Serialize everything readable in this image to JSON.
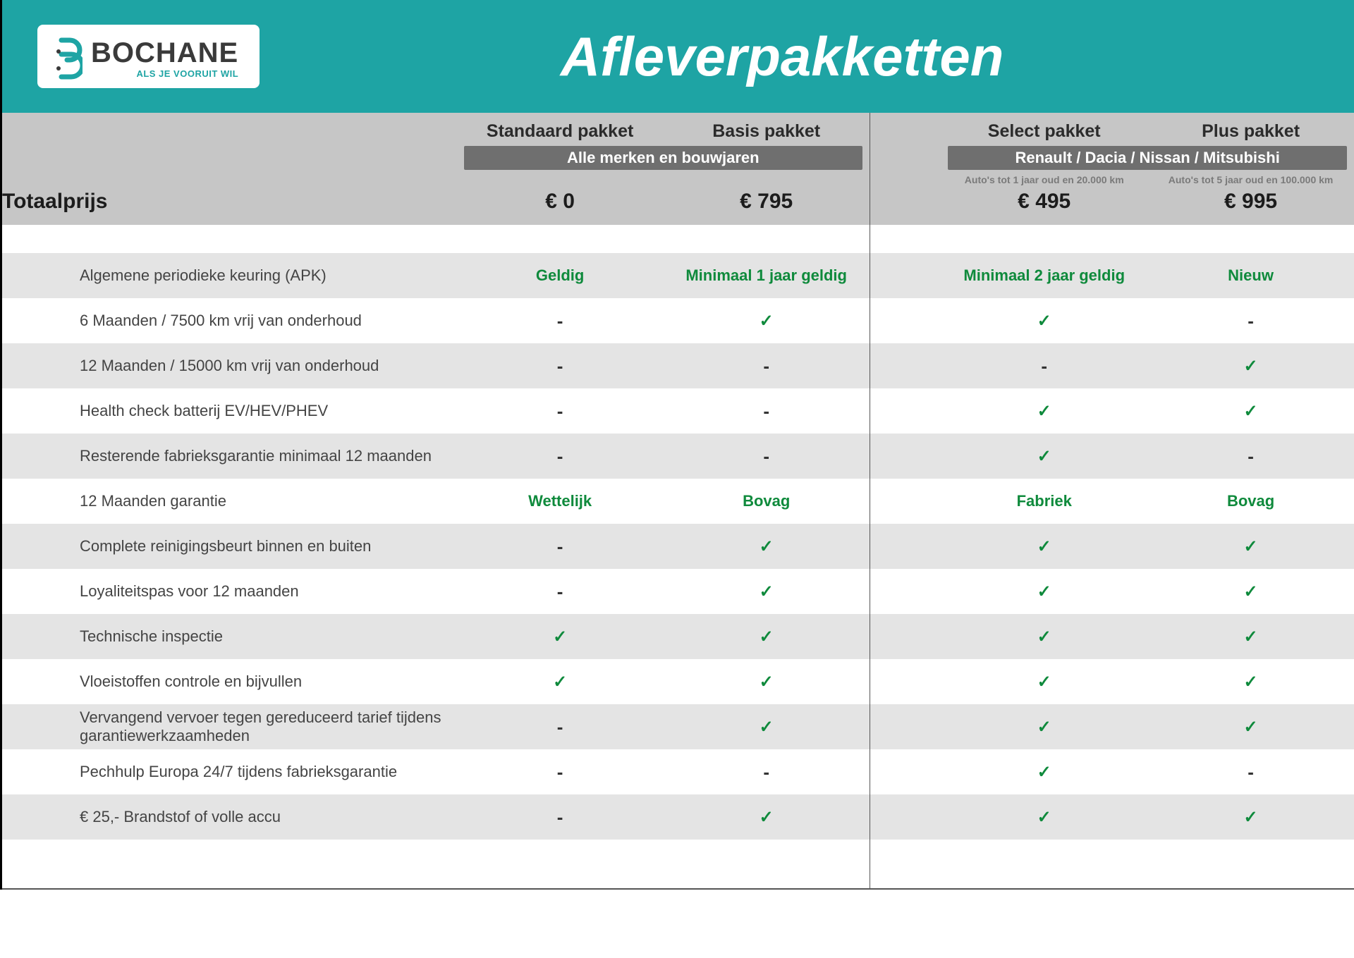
{
  "brand": {
    "name": "BOCHANE",
    "tagline": "ALS JE VOORUIT WIL",
    "logo_color": "#1ea4a4",
    "text_color": "#3a3a3a"
  },
  "title": "Afleverpakketten",
  "header_bg": "#1ea4a4",
  "header_area_bg": "#c6c6c6",
  "band_bg": "#6f6f6f",
  "alt_row_bg": "#e4e4e4",
  "green": "#0f8a3c",
  "groups": [
    {
      "band": "Alle merken en bouwjaren",
      "pkgs": [
        "standaard",
        "basis"
      ]
    },
    {
      "band": "Renault / Dacia / Nissan / Mitsubishi",
      "pkgs": [
        "select",
        "plus"
      ]
    }
  ],
  "packages": {
    "standaard": {
      "name": "Standaard pakket",
      "note": "",
      "price": "€ 0"
    },
    "basis": {
      "name": "Basis pakket",
      "note": "",
      "price": "€ 795"
    },
    "select": {
      "name": "Select pakket",
      "note": "Auto's tot 1 jaar oud en 20.000 km",
      "price": "€ 495"
    },
    "plus": {
      "name": "Plus pakket",
      "note": "Auto's tot 5 jaar oud en 100.000 km",
      "price": "€ 995"
    }
  },
  "totaal_label": "Totaalprijs",
  "rows": [
    {
      "label": "Algemene periodieke keuring (APK)",
      "alt": true,
      "cells": {
        "standaard": {
          "t": "text",
          "v": "Geldig"
        },
        "basis": {
          "t": "text",
          "v": "Minimaal 1 jaar geldig"
        },
        "select": {
          "t": "text",
          "v": "Minimaal 2 jaar geldig"
        },
        "plus": {
          "t": "text",
          "v": "Nieuw"
        }
      }
    },
    {
      "label": "6 Maanden / 7500 km vrij van onderhoud",
      "alt": false,
      "cells": {
        "standaard": {
          "t": "dash"
        },
        "basis": {
          "t": "check"
        },
        "select": {
          "t": "check"
        },
        "plus": {
          "t": "dash"
        }
      }
    },
    {
      "label": "12 Maanden / 15000 km vrij van onderhoud",
      "alt": true,
      "cells": {
        "standaard": {
          "t": "dash"
        },
        "basis": {
          "t": "dash"
        },
        "select": {
          "t": "dash"
        },
        "plus": {
          "t": "check"
        }
      }
    },
    {
      "label": "Health check batterij EV/HEV/PHEV",
      "alt": false,
      "cells": {
        "standaard": {
          "t": "dash"
        },
        "basis": {
          "t": "dash"
        },
        "select": {
          "t": "check"
        },
        "plus": {
          "t": "check"
        }
      }
    },
    {
      "label": "Resterende fabrieksgarantie minimaal 12 maanden",
      "alt": true,
      "cells": {
        "standaard": {
          "t": "dash"
        },
        "basis": {
          "t": "dash"
        },
        "select": {
          "t": "check"
        },
        "plus": {
          "t": "dash"
        }
      }
    },
    {
      "label": "12 Maanden  garantie",
      "alt": false,
      "cells": {
        "standaard": {
          "t": "text",
          "v": "Wettelijk"
        },
        "basis": {
          "t": "text",
          "v": "Bovag"
        },
        "select": {
          "t": "text",
          "v": "Fabriek"
        },
        "plus": {
          "t": "text",
          "v": "Bovag"
        }
      }
    },
    {
      "label": "Complete reinigingsbeurt binnen en buiten",
      "alt": true,
      "cells": {
        "standaard": {
          "t": "dash"
        },
        "basis": {
          "t": "check"
        },
        "select": {
          "t": "check"
        },
        "plus": {
          "t": "check"
        }
      }
    },
    {
      "label": "Loyaliteitspas voor 12 maanden",
      "alt": false,
      "cells": {
        "standaard": {
          "t": "dash"
        },
        "basis": {
          "t": "check"
        },
        "select": {
          "t": "check"
        },
        "plus": {
          "t": "check"
        }
      }
    },
    {
      "label": "Technische inspectie",
      "alt": true,
      "cells": {
        "standaard": {
          "t": "check"
        },
        "basis": {
          "t": "check"
        },
        "select": {
          "t": "check"
        },
        "plus": {
          "t": "check"
        }
      }
    },
    {
      "label": "Vloeistoffen controle en bijvullen",
      "alt": false,
      "cells": {
        "standaard": {
          "t": "check"
        },
        "basis": {
          "t": "check"
        },
        "select": {
          "t": "check"
        },
        "plus": {
          "t": "check"
        }
      }
    },
    {
      "label": "Vervangend vervoer tegen gereduceerd tarief tijdens garantiewerkzaamheden",
      "alt": true,
      "cells": {
        "standaard": {
          "t": "dash"
        },
        "basis": {
          "t": "check"
        },
        "select": {
          "t": "check"
        },
        "plus": {
          "t": "check"
        }
      }
    },
    {
      "label": "Pechhulp Europa 24/7 tijdens fabrieksgarantie",
      "alt": false,
      "cells": {
        "standaard": {
          "t": "dash"
        },
        "basis": {
          "t": "dash"
        },
        "select": {
          "t": "check"
        },
        "plus": {
          "t": "dash"
        }
      }
    },
    {
      "label": "€ 25,- Brandstof of  volle accu",
      "alt": true,
      "cells": {
        "standaard": {
          "t": "dash"
        },
        "basis": {
          "t": "check"
        },
        "select": {
          "t": "check"
        },
        "plus": {
          "t": "check"
        }
      }
    }
  ]
}
